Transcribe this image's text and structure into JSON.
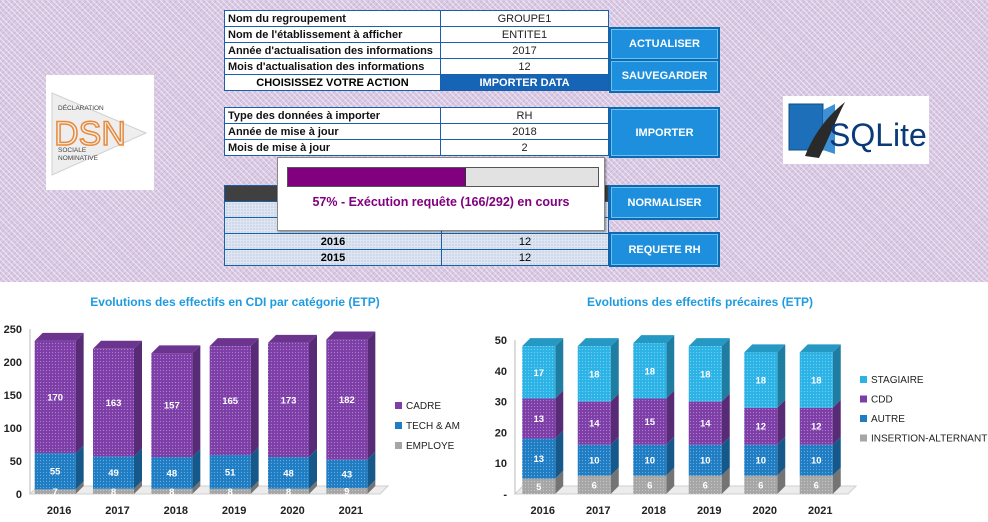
{
  "form1": {
    "rows": [
      {
        "label": "Nom du regroupement",
        "value": "GROUPE1"
      },
      {
        "label": "Nom de l'établissement à afficher",
        "value": "ENTITE1"
      },
      {
        "label": "Année d'actualisation des informations",
        "value": "2017"
      },
      {
        "label": "Mois d'actualisation des informations",
        "value": "12"
      }
    ],
    "action_label": "CHOISISSEZ VOTRE ACTION",
    "action_value": "IMPORTER DATA"
  },
  "form2": {
    "rows": [
      {
        "label": "Type des données à importer",
        "value": "RH"
      },
      {
        "label": "Année de mise à jour",
        "value": "2018"
      },
      {
        "label": "Mois de mise à jour",
        "value": "2"
      }
    ]
  },
  "form3": {
    "rows": [
      {
        "label": "2016",
        "value": "12"
      },
      {
        "label": "2015",
        "value": "12"
      }
    ]
  },
  "buttons": {
    "actualiser": "ACTUALISER",
    "sauvegarder": "SAUVEGARDER",
    "importer": "IMPORTER",
    "normaliser": "NORMALISER",
    "requete_rh": "REQUETE RH"
  },
  "logos": {
    "dsn": {
      "lines": [
        "DÉCLARATION",
        "SOCIALE",
        "NOMINATIVE"
      ],
      "mark": "DSN"
    },
    "sqlite": {
      "text": "SQLite"
    }
  },
  "progress": {
    "fraction": 0.57,
    "text": "57% -  Exécution requête (166/292) en cours"
  },
  "colors": {
    "cadre": "#7e3ea8",
    "tech": "#1f7dc4",
    "employe": "#a6a6a6",
    "stagiaire": "#2cb3e6",
    "cdd": "#7e3ea8",
    "autre": "#1f7dc4",
    "insertion": "#a6a6a6",
    "title": "#1e9be0"
  },
  "chart_data": [
    {
      "type": "bar",
      "stacked": true,
      "title": "Evolutions des effectifs en CDI par catégorie (ETP)",
      "categories": [
        "2016",
        "2017",
        "2018",
        "2019",
        "2020",
        "2021"
      ],
      "ylim": [
        0,
        250
      ],
      "yticks": [
        0,
        50,
        100,
        150,
        200,
        250
      ],
      "legend_position": "right",
      "series": [
        {
          "name": "EMPLOYE",
          "values": [
            7,
            8,
            8,
            8,
            8,
            9
          ]
        },
        {
          "name": "TECH & AM",
          "values": [
            55,
            49,
            48,
            51,
            48,
            43
          ]
        },
        {
          "name": "CADRE",
          "values": [
            170,
            163,
            157,
            165,
            173,
            182
          ]
        }
      ]
    },
    {
      "type": "bar",
      "stacked": true,
      "title": "Evolutions des effectifs précaires (ETP)",
      "categories": [
        "2016",
        "2017",
        "2018",
        "2019",
        "2020",
        "2021"
      ],
      "ylim": [
        0,
        50
      ],
      "yticks": [
        0,
        10,
        20,
        30,
        40,
        50
      ],
      "ytick_labels": [
        "-",
        "10",
        "20",
        "30",
        "40",
        "50"
      ],
      "legend_position": "right",
      "series": [
        {
          "name": "INSERTION-ALTERNANT",
          "values": [
            5,
            6,
            6,
            6,
            6,
            6
          ]
        },
        {
          "name": "AUTRE",
          "values": [
            13,
            10,
            10,
            10,
            10,
            10
          ]
        },
        {
          "name": "CDD",
          "values": [
            13,
            14,
            15,
            14,
            12,
            12
          ]
        },
        {
          "name": "STAGIAIRE",
          "values": [
            17,
            18,
            18,
            18,
            18,
            18
          ]
        }
      ]
    }
  ]
}
